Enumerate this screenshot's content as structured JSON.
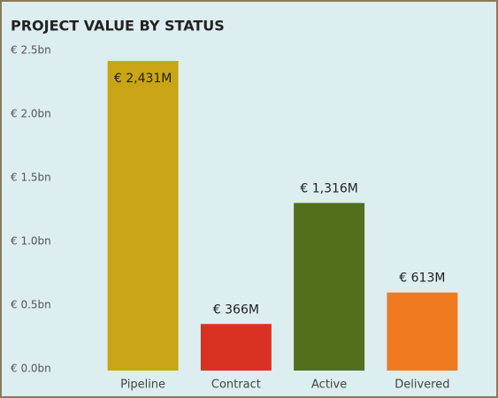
{
  "chart_data": {
    "type": "bar",
    "title": "PROJECT VALUE BY STATUS",
    "categories": [
      "Pipeline",
      "Contract",
      "Active",
      "Delivered"
    ],
    "values": [
      2.431,
      0.366,
      1.316,
      0.613
    ],
    "value_labels": [
      "€ 2,431M",
      "€ 366M",
      "€ 1,316M",
      "€ 613M"
    ],
    "colors": [
      "#c9a415",
      "#d93222",
      "#52701c",
      "#f07a22"
    ],
    "ylim": [
      0,
      2.5
    ],
    "yticks": [
      {
        "value": 0,
        "label": "€ 0.0bn"
      },
      {
        "value": 0.5,
        "label": "€ 0.5bn"
      },
      {
        "value": 1,
        "label": "€ 1.0bn"
      },
      {
        "value": 1.5,
        "label": "€ 1.5bn"
      },
      {
        "value": 2,
        "label": "€ 2.0bn"
      },
      {
        "value": 2.5,
        "label": "€ 2.5bn"
      }
    ],
    "grid": false
  }
}
